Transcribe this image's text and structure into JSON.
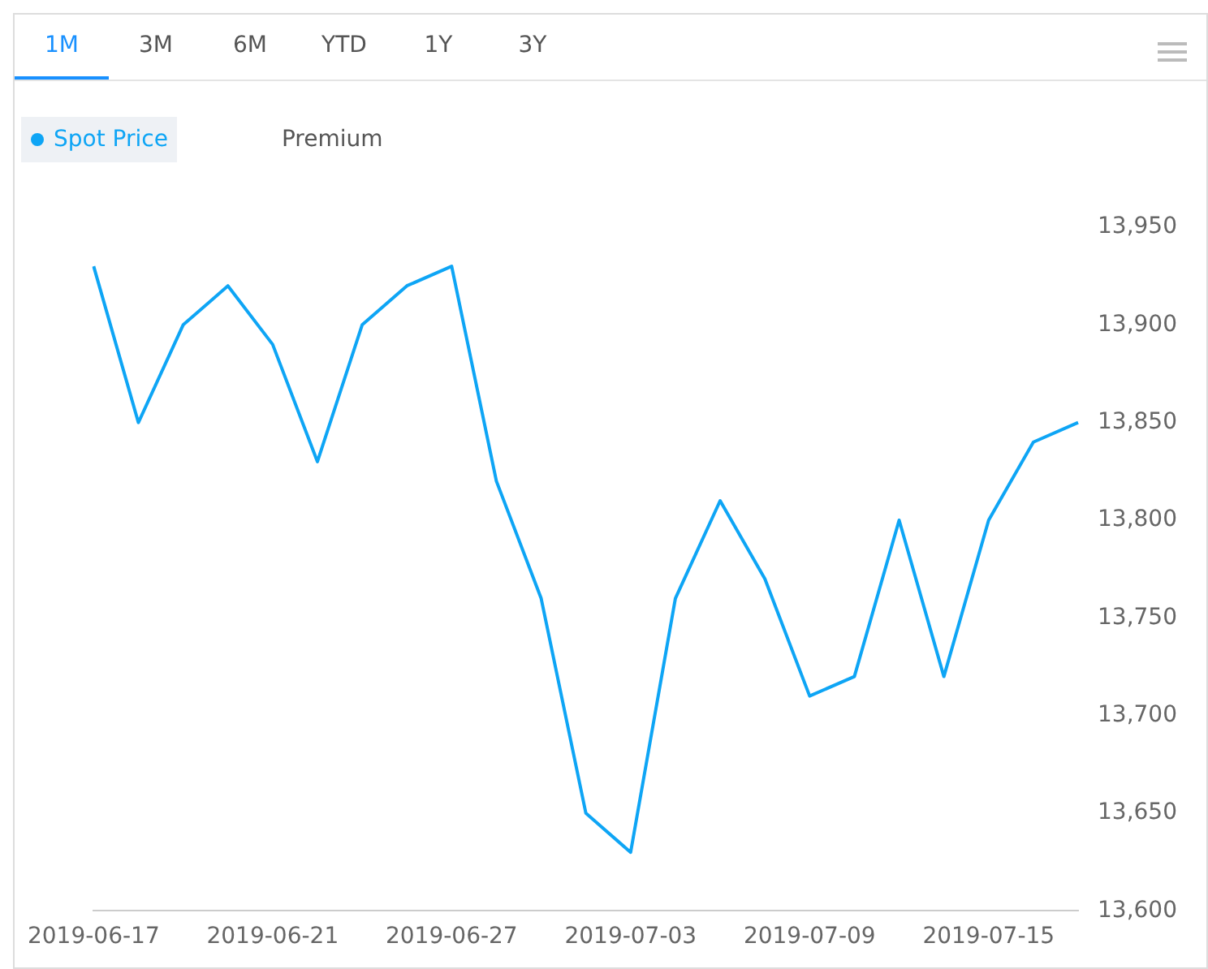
{
  "chart_data": {
    "type": "line",
    "annotations": [
      "1M",
      "3M",
      "6M",
      "YTD",
      "1Y",
      "3Y"
    ],
    "categories": [
      "2019-06-17",
      null,
      null,
      null,
      "2019-06-21",
      null,
      null,
      null,
      "2019-06-27",
      null,
      null,
      null,
      "2019-07-03",
      null,
      null,
      null,
      "2019-07-09",
      null,
      null,
      null,
      "2019-07-15",
      null,
      null
    ],
    "series": [
      {
        "name": "Spot Price",
        "color": "#0ea5f5",
        "values": [
          13930,
          13850,
          13900,
          13920,
          13890,
          13830,
          13900,
          13920,
          13930,
          13820,
          13760,
          13650,
          13630,
          13760,
          13810,
          13770,
          13710,
          13720,
          13800,
          13720,
          13800,
          13840,
          13850
        ]
      },
      {
        "name": "Premium",
        "color": "#555555",
        "values": [
          null,
          null,
          null,
          null,
          null,
          null,
          null,
          null,
          null,
          null,
          null,
          null,
          null,
          null,
          null,
          null,
          null,
          null,
          null,
          null,
          null,
          null,
          null
        ]
      }
    ],
    "ylim": [
      13600,
      13950
    ],
    "yticks": [
      {
        "value": 13600,
        "label": "13,600"
      },
      {
        "value": 13650,
        "label": "13,650"
      },
      {
        "value": 13700,
        "label": "13,700"
      },
      {
        "value": 13750,
        "label": "13,750"
      },
      {
        "value": 13800,
        "label": "13,800"
      },
      {
        "value": 13850,
        "label": "13,850"
      },
      {
        "value": 13900,
        "label": "13,900"
      },
      {
        "value": 13950,
        "label": "13,950"
      }
    ],
    "grid": false,
    "legend": "top left",
    "marker": "none",
    "line_style": "solid"
  }
}
